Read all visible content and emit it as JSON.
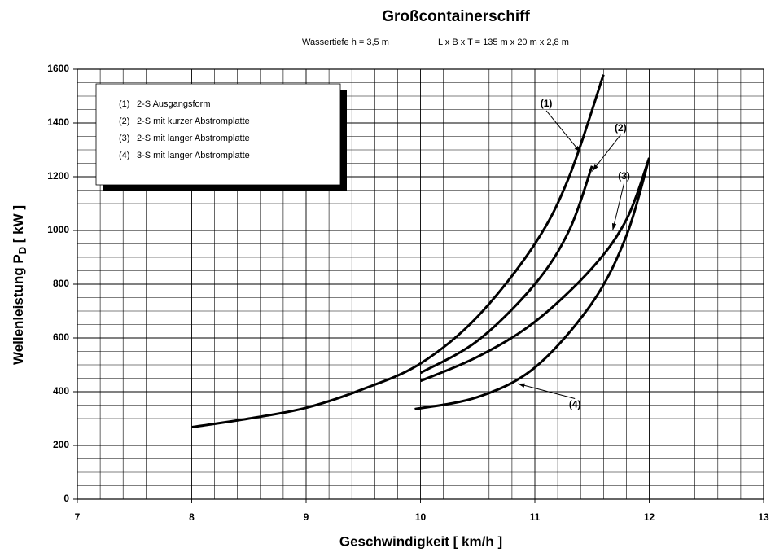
{
  "chart_data": {
    "type": "line",
    "title": "Großcontainerschiff",
    "subtitle": [
      "Wassertiefe h = 3,5 m",
      "L x B x T = 135 m x 20 m x 2,8 m"
    ],
    "xlabel": "Geschwindigkeit  [ km/h ]",
    "ylabel": "Wellenleistung  P",
    "ylabel_sub": "D",
    "ylabel_unit": " [ kW ]",
    "xlim": [
      7,
      13
    ],
    "xticks": [
      7,
      8,
      9,
      10,
      11,
      12,
      13
    ],
    "ylim": [
      0,
      1600
    ],
    "yticks": [
      0,
      200,
      400,
      600,
      800,
      1000,
      1200,
      1400,
      1600
    ],
    "minor_xticks": [
      7.2,
      7.4,
      7.6,
      7.8,
      8.2,
      8.4,
      8.6,
      8.8,
      9.2,
      9.4,
      9.6,
      9.8,
      10.2,
      10.4,
      10.6,
      10.8,
      11.2,
      11.4,
      11.6,
      11.8,
      12.2,
      12.4,
      12.6,
      12.8
    ],
    "minor_yticks": [
      50,
      100,
      150,
      250,
      300,
      350,
      450,
      500,
      550,
      650,
      700,
      750,
      850,
      900,
      950,
      1050,
      1100,
      1150,
      1250,
      1300,
      1350,
      1450,
      1500,
      1550
    ],
    "grid": true,
    "legend": "upper left",
    "series": [
      {
        "key": "(1)",
        "name": "2-S Ausgangsform",
        "color": "#000000",
        "x": [
          8,
          8.5,
          9,
          9.5,
          10,
          10.5,
          11,
          11.3,
          11.6
        ],
        "values": [
          268,
          300,
          340,
          410,
          505,
          680,
          950,
          1200,
          1580
        ],
        "annotation": {
          "x": 11.4,
          "y": 1290,
          "tx": 11.1,
          "ty": 1470
        }
      },
      {
        "key": "(2)",
        "name": "2-S mit kurzer Abstromplatte",
        "color": "#000000",
        "x": [
          10,
          10.5,
          11,
          11.3,
          11.5
        ],
        "values": [
          470,
          590,
          800,
          1000,
          1240
        ],
        "annotation": {
          "x": 11.5,
          "y": 1220,
          "tx": 11.75,
          "ty": 1380
        }
      },
      {
        "key": "(3)",
        "name": "2-S mit langer Abstromplatte",
        "color": "#000000",
        "x": [
          10,
          10.5,
          11,
          11.5,
          11.8,
          12
        ],
        "values": [
          440,
          530,
          660,
          860,
          1040,
          1270
        ],
        "annotation": {
          "x": 11.68,
          "y": 1000,
          "tx": 11.78,
          "ty": 1200
        }
      },
      {
        "key": "(4)",
        "name": "3-S mit langer Abstromplatte",
        "color": "#000000",
        "x": [
          9.95,
          10.5,
          11,
          11.5,
          11.8,
          12
        ],
        "values": [
          335,
          380,
          490,
          730,
          980,
          1270
        ],
        "annotation": {
          "x": 10.85,
          "y": 430,
          "tx": 11.35,
          "ty": 350
        }
      }
    ]
  }
}
